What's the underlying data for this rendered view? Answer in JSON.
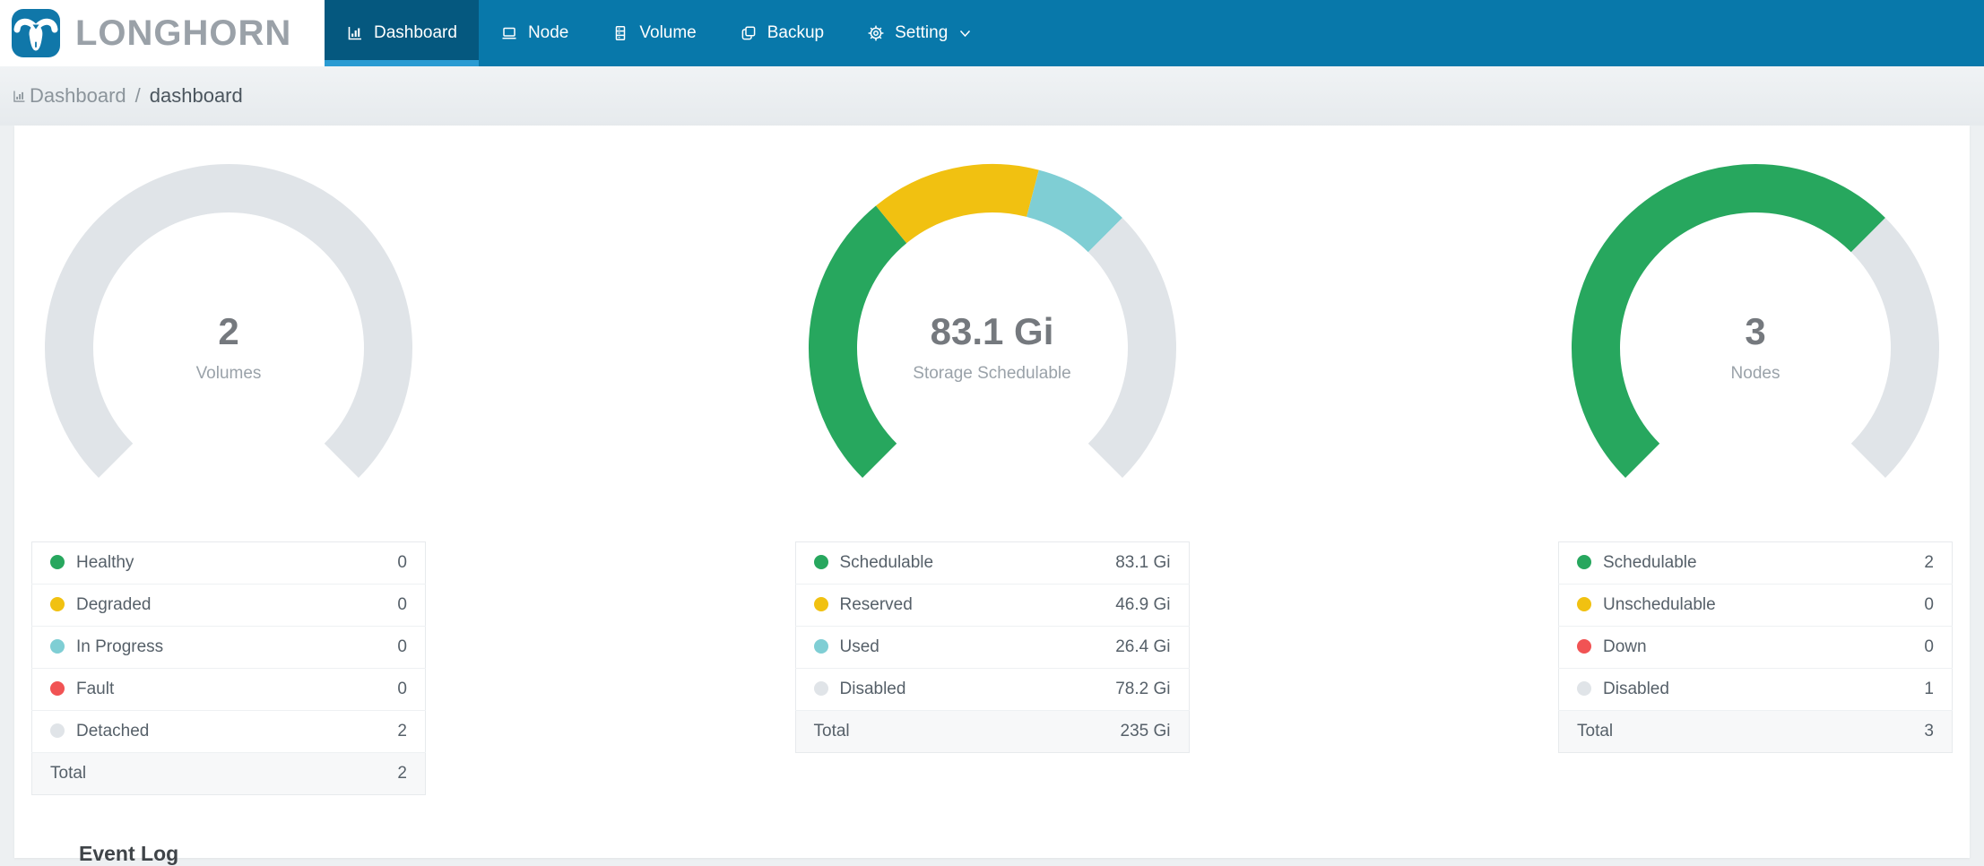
{
  "brand": {
    "name": "LONGHORN"
  },
  "nav": {
    "items": [
      {
        "label": "Dashboard",
        "icon": "dashboard-icon",
        "active": true
      },
      {
        "label": "Node",
        "icon": "node-icon",
        "active": false
      },
      {
        "label": "Volume",
        "icon": "volume-icon",
        "active": false
      },
      {
        "label": "Backup",
        "icon": "backup-icon",
        "active": false
      },
      {
        "label": "Setting",
        "icon": "setting-icon",
        "active": false,
        "has_dropdown": true
      }
    ]
  },
  "breadcrumb": {
    "section": "Dashboard",
    "separator": "/",
    "current": "dashboard"
  },
  "colors": {
    "nav_bg": "#0878aa",
    "nav_active_bg": "#05587f",
    "nav_active_underline": "#2a9bd2",
    "accent_green": "#27a75e",
    "accent_yellow": "#f1c111",
    "accent_teal": "#7fced4",
    "accent_red": "#f15354",
    "neutral_gray": "#e0e4e8"
  },
  "chart_data": [
    {
      "type": "gauge",
      "title": "Volumes",
      "center_value": "2",
      "center_label": "Volumes",
      "arc": {
        "start_angle": 225,
        "sweep": 270
      },
      "segments": [
        {
          "label": "Healthy",
          "value": 0,
          "display": "0",
          "color": "#27a75e"
        },
        {
          "label": "Degraded",
          "value": 0,
          "display": "0",
          "color": "#f1c111"
        },
        {
          "label": "In Progress",
          "value": 0,
          "display": "0",
          "color": "#7fced4"
        },
        {
          "label": "Fault",
          "value": 0,
          "display": "0",
          "color": "#f15354"
        },
        {
          "label": "Detached",
          "value": 2,
          "display": "2",
          "color": "#e0e4e8"
        }
      ],
      "total_label": "Total",
      "total_display": "2"
    },
    {
      "type": "gauge",
      "title": "Storage Schedulable",
      "center_value": "83.1 Gi",
      "center_label": "Storage Schedulable",
      "arc": {
        "start_angle": 225,
        "sweep": 270
      },
      "segments": [
        {
          "label": "Schedulable",
          "value": 83.1,
          "display": "83.1 Gi",
          "color": "#27a75e"
        },
        {
          "label": "Reserved",
          "value": 46.9,
          "display": "46.9 Gi",
          "color": "#f1c111"
        },
        {
          "label": "Used",
          "value": 26.4,
          "display": "26.4 Gi",
          "color": "#7fced4"
        },
        {
          "label": "Disabled",
          "value": 78.2,
          "display": "78.2 Gi",
          "color": "#e0e4e8"
        }
      ],
      "total_label": "Total",
      "total_display": "235 Gi"
    },
    {
      "type": "gauge",
      "title": "Nodes",
      "center_value": "3",
      "center_label": "Nodes",
      "arc": {
        "start_angle": 225,
        "sweep": 270
      },
      "segments": [
        {
          "label": "Schedulable",
          "value": 2,
          "display": "2",
          "color": "#27a75e"
        },
        {
          "label": "Unschedulable",
          "value": 0,
          "display": "0",
          "color": "#f1c111"
        },
        {
          "label": "Down",
          "value": 0,
          "display": "0",
          "color": "#f15354"
        },
        {
          "label": "Disabled",
          "value": 1,
          "display": "1",
          "color": "#e0e4e8"
        }
      ],
      "total_label": "Total",
      "total_display": "3"
    }
  ],
  "event_log": {
    "title": "Event Log"
  }
}
